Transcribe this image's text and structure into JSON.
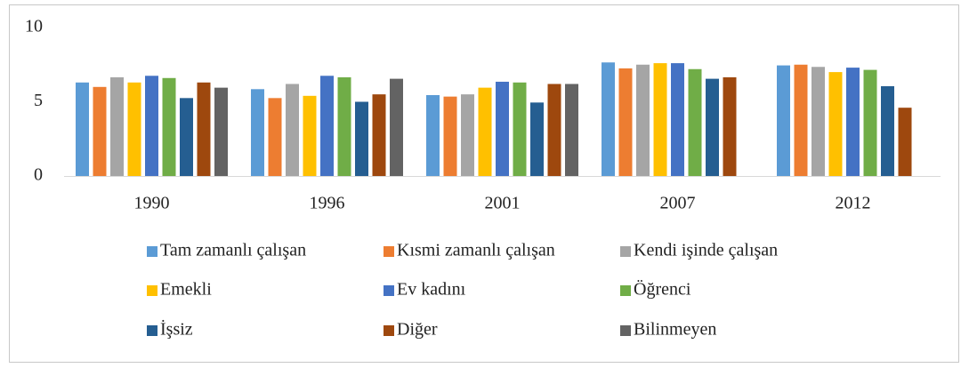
{
  "chart_data": {
    "type": "bar",
    "categories": [
      "1990",
      "1996",
      "2001",
      "2007",
      "2012"
    ],
    "series": [
      {
        "name": "Tam zamanlı çalışan",
        "color": "#5b9bd5",
        "values": [
          6.3,
          5.85,
          5.45,
          7.65,
          7.45
        ]
      },
      {
        "name": "Kısmi zamanlı çalışan",
        "color": "#ed7d31",
        "values": [
          6.0,
          5.25,
          5.35,
          7.25,
          7.5
        ]
      },
      {
        "name": "Kendi işinde çalışan",
        "color": "#a5a5a5",
        "values": [
          6.65,
          6.2,
          5.5,
          7.5,
          7.35
        ]
      },
      {
        "name": "Emekli",
        "color": "#ffc000",
        "values": [
          6.3,
          5.4,
          5.95,
          7.6,
          7.0
        ]
      },
      {
        "name": "Ev kadını",
        "color": "#4472c4",
        "values": [
          6.75,
          6.75,
          6.35,
          7.6,
          7.3
        ]
      },
      {
        "name": "Öğrenci",
        "color": "#70ad47",
        "values": [
          6.6,
          6.65,
          6.3,
          7.2,
          7.15
        ]
      },
      {
        "name": "İşsiz",
        "color": "#255e91",
        "values": [
          5.25,
          5.0,
          4.95,
          6.55,
          6.05
        ]
      },
      {
        "name": "Diğer",
        "color": "#9e480e",
        "values": [
          6.3,
          5.5,
          6.2,
          6.65,
          4.6
        ]
      },
      {
        "name": "Bilinmeyen",
        "color": "#636363",
        "values": [
          5.95,
          6.55,
          6.2,
          null,
          null
        ]
      }
    ],
    "ylim": [
      0,
      10
    ],
    "yticks": [
      0,
      5,
      10
    ],
    "grid": false,
    "legend": "bottom"
  }
}
